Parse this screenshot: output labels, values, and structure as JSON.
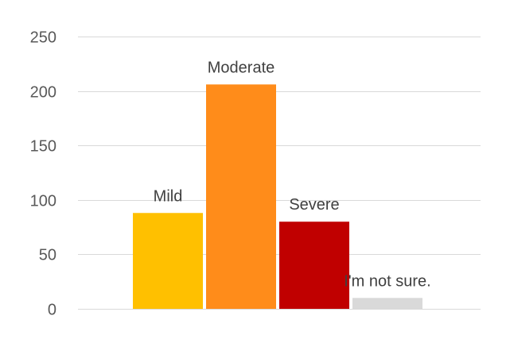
{
  "chart_data": {
    "type": "bar",
    "categories": [
      "Mild",
      "Moderate",
      "Severe",
      "I'm not sure."
    ],
    "values": [
      88,
      206,
      80,
      10
    ],
    "colors": [
      "#FFC000",
      "#FF8C1A",
      "#C00000",
      "#D9D9D9"
    ],
    "title": "",
    "xlabel": "",
    "ylabel": "",
    "ylim": [
      0,
      250
    ],
    "yticks": [
      0,
      50,
      100,
      150,
      200,
      250
    ],
    "grid": true,
    "legend": "none",
    "data_labels": "above-bar"
  }
}
